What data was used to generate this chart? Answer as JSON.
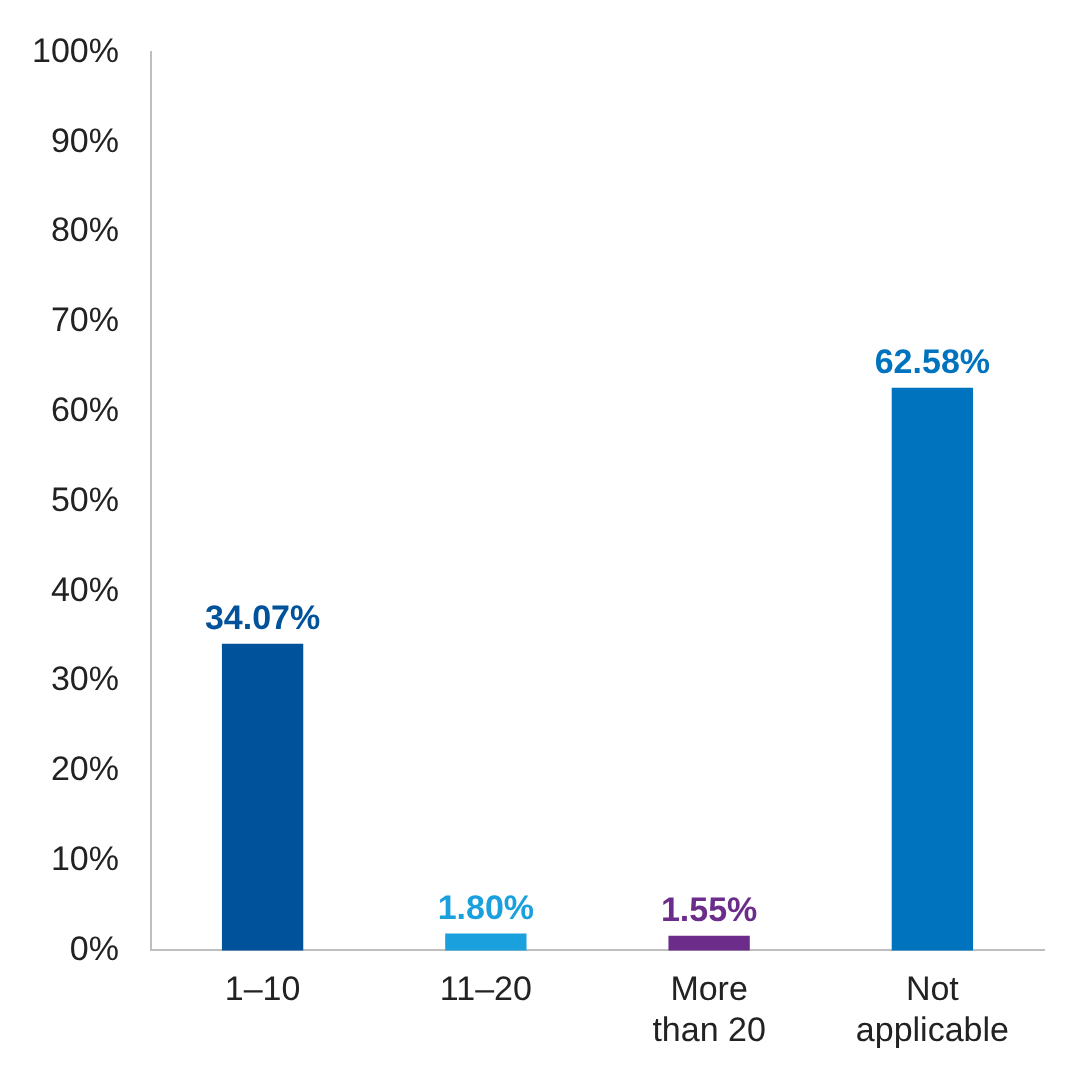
{
  "chart_data": {
    "type": "bar",
    "categories": [
      "1–10",
      "11–20",
      "More than 20",
      "Not applicable"
    ],
    "values": [
      34.07,
      1.8,
      1.55,
      62.58
    ],
    "colors": [
      "#00529b",
      "#1aa0dc",
      "#6b2c8a",
      "#0073bf"
    ],
    "value_labels": [
      "34.07%",
      "1.80%",
      "1.55%",
      "62.58%"
    ],
    "ylim": [
      0,
      100
    ],
    "yticks": [
      {
        "value": 0,
        "label": "0%"
      },
      {
        "value": 10,
        "label": "10%"
      },
      {
        "value": 20,
        "label": "20%"
      },
      {
        "value": 30,
        "label": "30%"
      },
      {
        "value": 40,
        "label": "40%"
      },
      {
        "value": 50,
        "label": "50%"
      },
      {
        "value": 60,
        "label": "60%"
      },
      {
        "value": 70,
        "label": "70%"
      },
      {
        "value": 80,
        "label": "80%"
      },
      {
        "value": 90,
        "label": "90%"
      },
      {
        "value": 100,
        "label": "100%"
      }
    ],
    "grid": false,
    "legend": false
  }
}
